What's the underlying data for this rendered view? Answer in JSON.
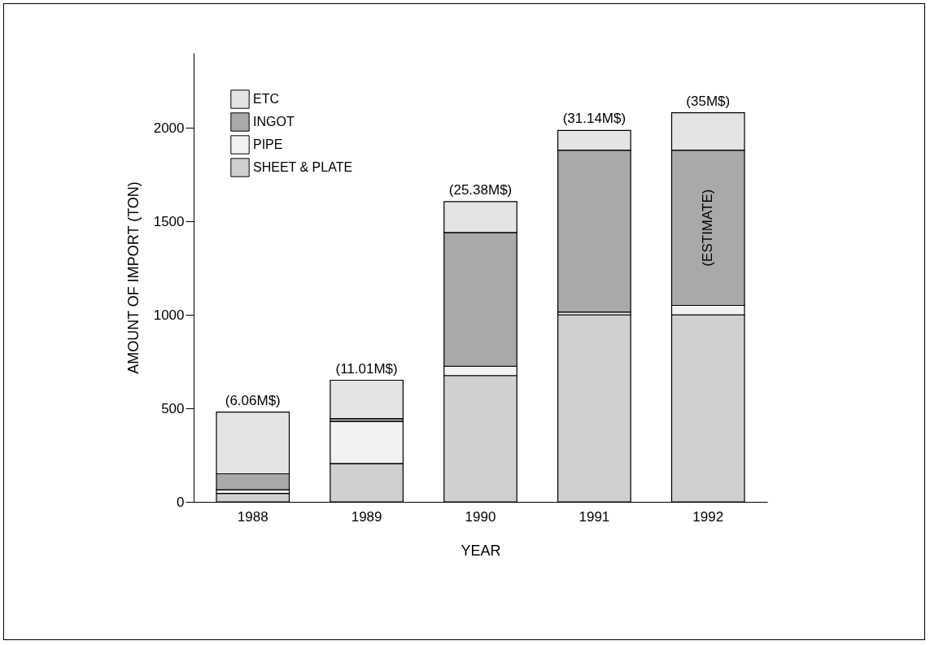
{
  "chart_data": {
    "type": "bar",
    "stacked": true,
    "xlabel": "YEAR",
    "ylabel": "AMOUNT OF IMPORT (TON)",
    "categories": [
      "1988",
      "1989",
      "1990",
      "1991",
      "1992"
    ],
    "series": [
      {
        "name": "SHEET & PLATE",
        "color": "#d0d0d0",
        "values": [
          45,
          205,
          675,
          1000,
          1000
        ]
      },
      {
        "name": "PIPE",
        "color": "#f2f2f2",
        "values": [
          20,
          225,
          50,
          15,
          50
        ]
      },
      {
        "name": "INGOT",
        "color": "#a9a9a9",
        "values": [
          85,
          15,
          715,
          865,
          830
        ]
      },
      {
        "name": "ETC",
        "color": "#e4e4e4",
        "values": [
          330,
          205,
          165,
          105,
          200
        ]
      }
    ],
    "ylim": [
      0,
      2400
    ],
    "yticks": [
      0,
      500,
      1000,
      1500,
      2000
    ],
    "grid": false,
    "legend": "top left",
    "annotations": [
      {
        "text": "(6.06M$)",
        "x": "1988",
        "y": 480
      },
      {
        "text": "(11.01M$)",
        "x": "1989",
        "y": 650
      },
      {
        "text": "(25.38M$)",
        "x": "1990",
        "y": 1605
      },
      {
        "text": "(31.14M$)",
        "x": "1991",
        "y": 1985
      },
      {
        "text": "(35M$)",
        "x": "1992",
        "y": 2080
      },
      "(ESTIMATE)"
    ]
  }
}
